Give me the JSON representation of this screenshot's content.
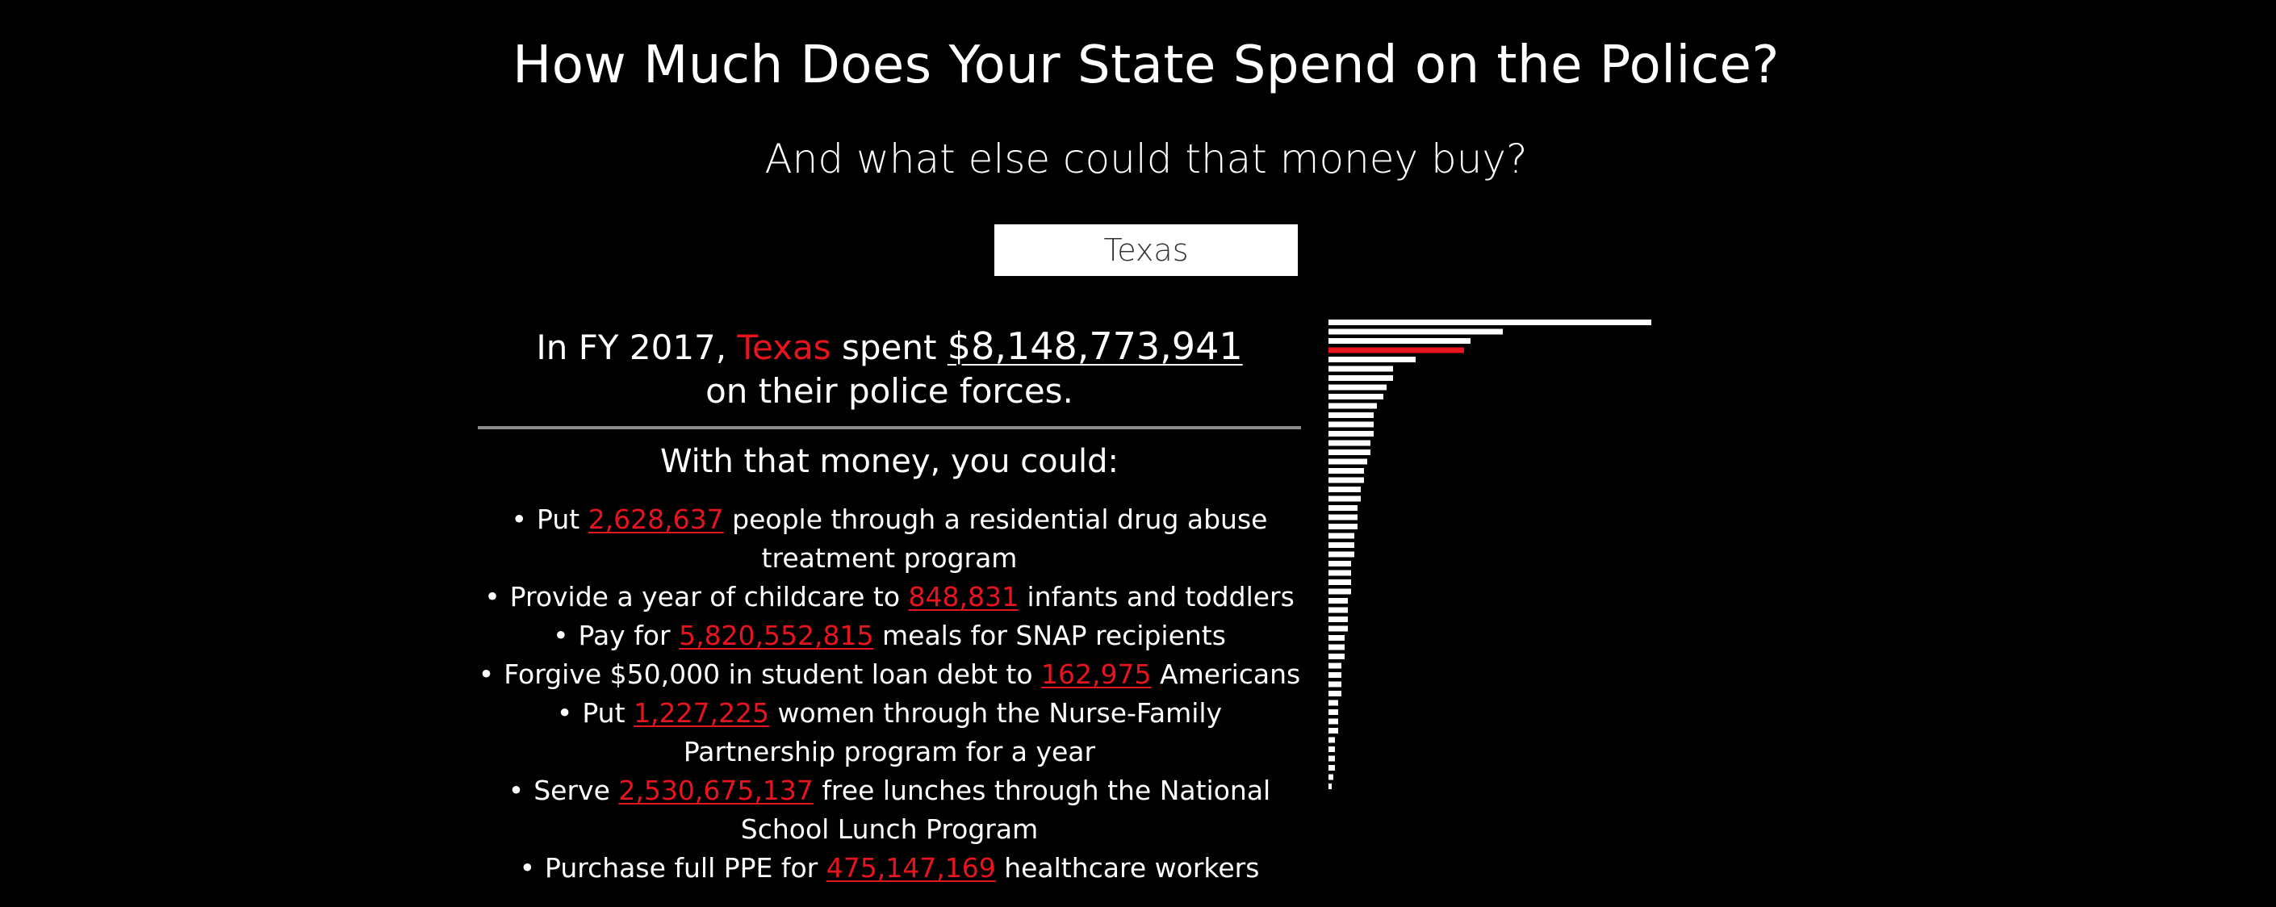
{
  "header": {
    "title": "How Much Does Your State Spend on the Police?",
    "subtitle": "And what else could that money buy?"
  },
  "state_selector": {
    "selected": "Texas"
  },
  "summary": {
    "prefix": "In FY 2017,",
    "state": "Texas",
    "verb": "spent",
    "amount": "$8,148,773,941",
    "suffix": "on their police forces."
  },
  "alternatives": {
    "heading": "With that money, you could:",
    "items": [
      {
        "before": "Put",
        "value": "2,628,637",
        "after": "people through a residential drug abuse treatment program"
      },
      {
        "before": "Provide a year of childcare to",
        "value": "848,831",
        "after": "infants and toddlers"
      },
      {
        "before": "Pay for",
        "value": "5,820,552,815",
        "after": "meals for SNAP recipients"
      },
      {
        "before": "Forgive $50,000 in student loan debt to",
        "value": "162,975",
        "after": "Americans"
      },
      {
        "before": "Put",
        "value": "1,227,225",
        "after": "women through the Nurse-Family Partnership program for a year"
      },
      {
        "before": "Serve",
        "value": "2,530,675,137",
        "after": "free lunches through the National School Lunch Program"
      },
      {
        "before": "Purchase full PPE for",
        "value": "475,147,169",
        "after": "healthcare workers"
      }
    ]
  },
  "colors": {
    "background": "#000000",
    "text": "#ffffff",
    "highlight": "#e8141d",
    "divider": "#8a8a8a"
  },
  "chart_data": {
    "type": "bar",
    "orientation": "horizontal",
    "highlighted_index": 3,
    "values": [
      100,
      54,
      44,
      42,
      27,
      20,
      20,
      18,
      17,
      15,
      14,
      14,
      14,
      13,
      13,
      12,
      11,
      11,
      10,
      10,
      9,
      9,
      9,
      8,
      8,
      8,
      7,
      7,
      7,
      7,
      6,
      6,
      6,
      6,
      5,
      5,
      5,
      4,
      4,
      4,
      4,
      3,
      3,
      3,
      3,
      2,
      2,
      2,
      2,
      1.5,
      1
    ]
  }
}
